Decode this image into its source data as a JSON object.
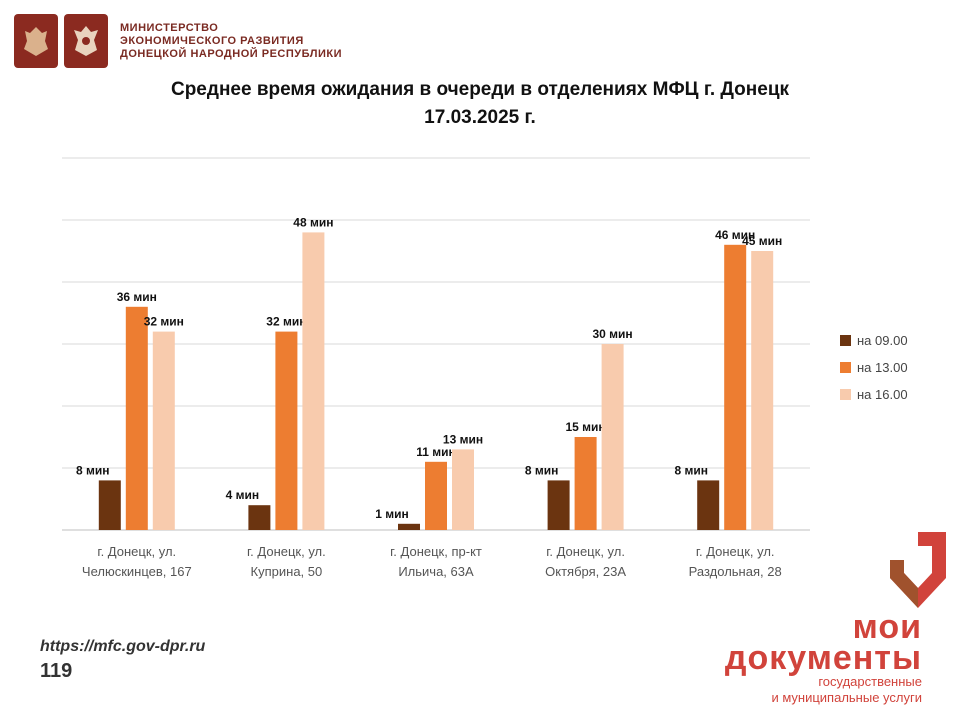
{
  "header": {
    "ministry_lines": [
      "МИНИСТЕРСТВО",
      "ЭКОНОМИЧЕСКОГО РАЗВИТИЯ",
      "ДОНЕЦКОЙ НАРОДНОЙ РЕСПУБЛИКИ"
    ],
    "emblems": [
      "coat-of-arms-russia-icon",
      "coat-of-arms-dpr-icon"
    ]
  },
  "title_lines": [
    "Среднее время ожидания в очереди в отделениях МФЦ г. Донецк",
    "17.03.2025 г."
  ],
  "chart_data": {
    "type": "bar",
    "title": "Среднее время ожидания в очереди в отделениях МФЦ г. Донецк 17.03.2025 г.",
    "categories": [
      [
        "г. Донецк, ул.",
        "Челюскинцев, 167"
      ],
      [
        "г. Донецк, ул.",
        "Куприна, 50"
      ],
      [
        "г. Донецк, пр-кт",
        "Ильича, 63А"
      ],
      [
        "г. Донецк, ул.",
        "Октября, 23А"
      ],
      [
        "г. Донецк, ул.",
        "Раздольная, 28"
      ]
    ],
    "series": [
      {
        "name": "на 09.00",
        "color": "#6b3410",
        "values": [
          8,
          4,
          1,
          8,
          8
        ]
      },
      {
        "name": "на 13.00",
        "color": "#ed7d31",
        "values": [
          36,
          32,
          11,
          15,
          46
        ]
      },
      {
        "name": "на 16.00",
        "color": "#f8cbad",
        "values": [
          32,
          48,
          13,
          30,
          45
        ]
      }
    ],
    "value_suffix": " мин",
    "ylim": [
      0,
      60
    ],
    "grid": true,
    "legend": "right",
    "xlabel": "",
    "ylabel": ""
  },
  "footer": {
    "url": "https://mfc.gov-dpr.ru",
    "page": "119"
  },
  "logo": {
    "line1": "мои",
    "line2": "документы",
    "sub1": "государственные",
    "sub2": "и муниципальные услуги",
    "accent": "#d1433b"
  }
}
